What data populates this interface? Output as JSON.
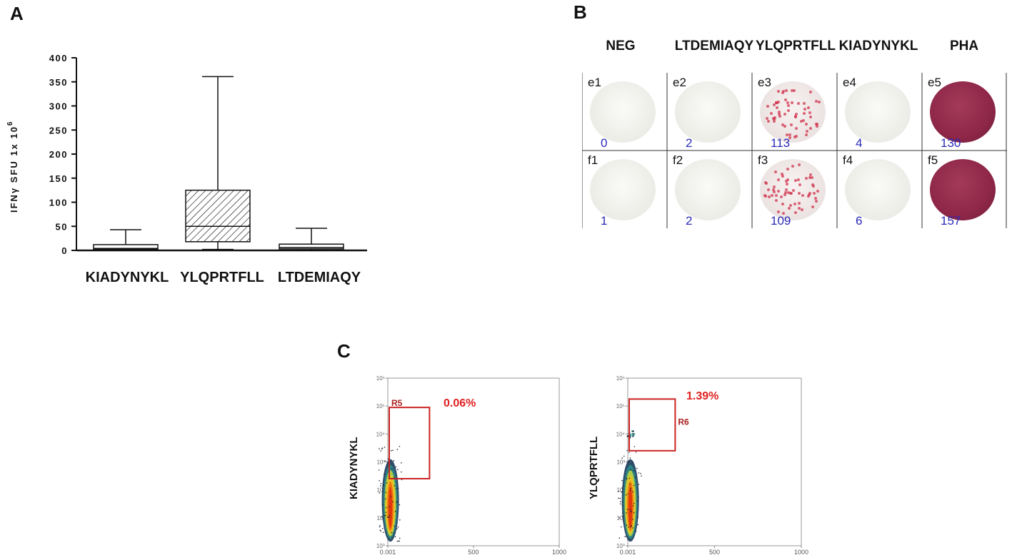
{
  "panels": {
    "a": {
      "letter": "A"
    },
    "b": {
      "letter": "B",
      "column_headers": [
        "NEG",
        "LTDEMIAQY",
        "YLQPRTFLL",
        "KIADYNYKL",
        "PHA"
      ],
      "wells": [
        [
          {
            "id": "e1",
            "count": "0",
            "style": "neg"
          },
          {
            "id": "e2",
            "count": "2",
            "style": "neg"
          },
          {
            "id": "e3",
            "count": "113",
            "style": "mid"
          },
          {
            "id": "e4",
            "count": "4",
            "style": "neg"
          },
          {
            "id": "e5",
            "count": "130",
            "style": "pha"
          }
        ],
        [
          {
            "id": "f1",
            "count": "1",
            "style": "neg"
          },
          {
            "id": "f2",
            "count": "2",
            "style": "neg"
          },
          {
            "id": "f3",
            "count": "109",
            "style": "mid"
          },
          {
            "id": "f4",
            "count": "6",
            "style": "neg"
          },
          {
            "id": "f5",
            "count": "157",
            "style": "pha"
          }
        ]
      ]
    },
    "c": {
      "letter": "C",
      "plots": [
        {
          "ylabel": "KIADYNYKL",
          "gate_label": "R5",
          "percent": "0.06%",
          "gate": {
            "x_range": [
              0.001,
              235
            ],
            "y_log_range": [
              2.4,
              4.95
            ]
          }
        },
        {
          "ylabel": "YLQPRTFLL",
          "gate_label": "R6",
          "percent": "1.39%",
          "gate": {
            "x_range": [
              0.001,
              265
            ],
            "y_log_range": [
              3.4,
              5.25
            ]
          }
        }
      ],
      "x_ticks": [
        "0.001",
        "500",
        "1000"
      ],
      "x_tick_values": [
        0,
        500,
        1000
      ],
      "y_ticks": [
        "10⁰",
        "10¹",
        "10²",
        "10³",
        "10⁴",
        "10⁵",
        "10⁶"
      ],
      "y_tick_values": [
        0,
        1,
        2,
        3,
        4,
        5,
        6
      ]
    }
  },
  "chart_data": {
    "type": "box",
    "title": "",
    "ylabel_main": "IFNγ SFU 1x 10",
    "ylabel_sup": "6",
    "xlabel": "",
    "ylim": [
      0,
      400
    ],
    "y_ticks": [
      0,
      50,
      100,
      150,
      200,
      250,
      300,
      350,
      400
    ],
    "categories": [
      "KIADYNYKL",
      "YLQPRTFLL",
      "LTDEMIAQY"
    ],
    "boxes": [
      {
        "category": "KIADYNYKL",
        "min": 0,
        "q1": 2,
        "median": 4,
        "q3": 12,
        "max": 43,
        "pattern": "plain"
      },
      {
        "category": "YLQPRTFLL",
        "min": 2,
        "q1": 18,
        "median": 50,
        "q3": 125,
        "max": 361,
        "pattern": "hatched"
      },
      {
        "category": "LTDEMIAQY",
        "min": 0,
        "q1": 3,
        "median": 6,
        "q3": 13,
        "max": 46,
        "pattern": "plain"
      }
    ]
  },
  "colors": {
    "gate": "#cc2222",
    "percent": "#e02020",
    "count_text": "#2a2ab8",
    "spot": "#d1364f"
  }
}
